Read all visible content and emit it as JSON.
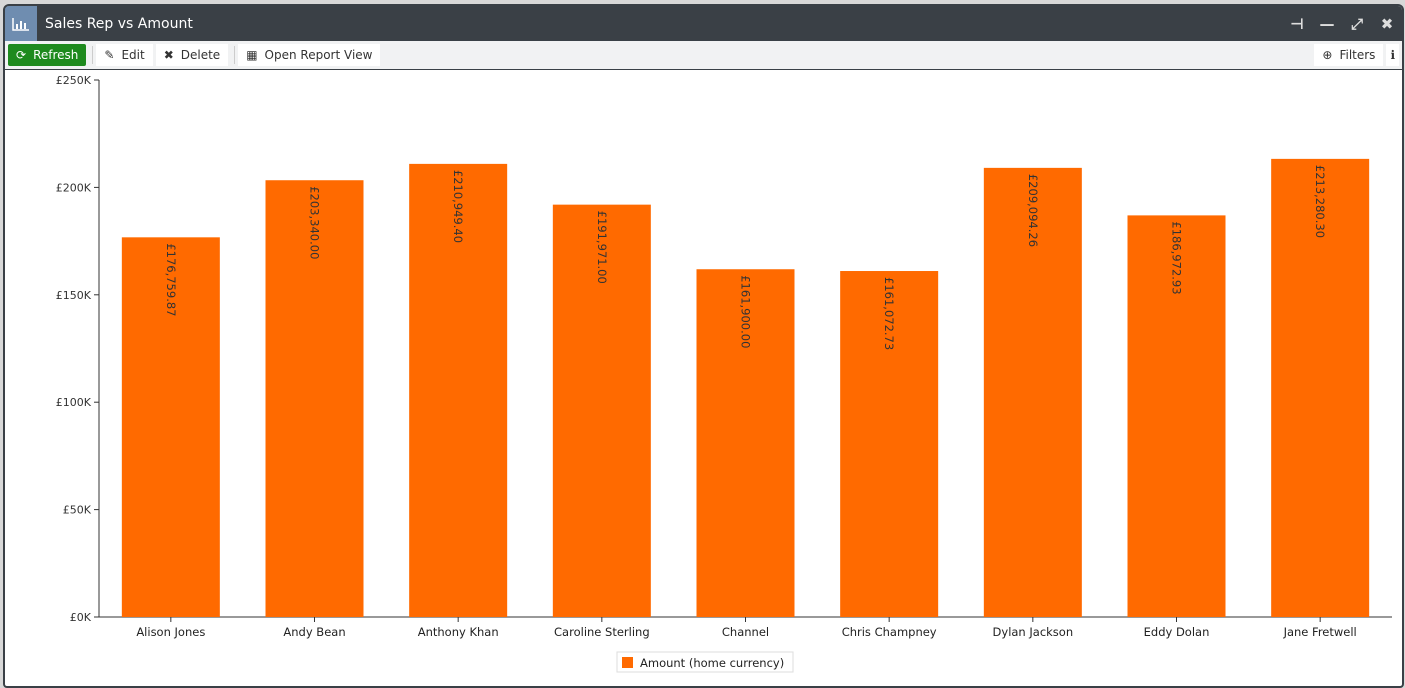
{
  "window": {
    "title": "Sales Rep vs Amount",
    "icon": "bar-chart-icon",
    "controls": [
      "pin-icon",
      "minimize-icon",
      "maximize-icon",
      "close-icon"
    ]
  },
  "toolbar": {
    "refresh": "Refresh",
    "edit": "Edit",
    "delete": "Delete",
    "open_report": "Open Report View",
    "filters": "Filters"
  },
  "colors": {
    "bar": "#ff6a00",
    "titlebar": "#3a4046",
    "refresh": "#1e8a1e"
  },
  "chart_data": {
    "type": "bar",
    "categories": [
      "Alison Jones",
      "Andy Bean",
      "Anthony Khan",
      "Caroline Sterling",
      "Channel",
      "Chris Champney",
      "Dylan Jackson",
      "Eddy Dolan",
      "Jane Fretwell"
    ],
    "series": [
      {
        "name": "Amount (home currency)",
        "values": [
          176759.87,
          203340.0,
          210949.4,
          191971.0,
          161900.0,
          161072.73,
          209094.26,
          186972.93,
          213280.3
        ]
      }
    ],
    "data_labels": [
      "£176,759.87",
      "£203,340.00",
      "£210,949.40",
      "£191,971.00",
      "£161,900.00",
      "£161,072.73",
      "£209,094.26",
      "£186,972.93",
      "£213,280.30"
    ],
    "ylim": [
      0,
      250000
    ],
    "yticks": [
      "£0K",
      "£50K",
      "£100K",
      "£150K",
      "£200K",
      "£250K"
    ],
    "grid": false,
    "legend": "bottom-center"
  }
}
